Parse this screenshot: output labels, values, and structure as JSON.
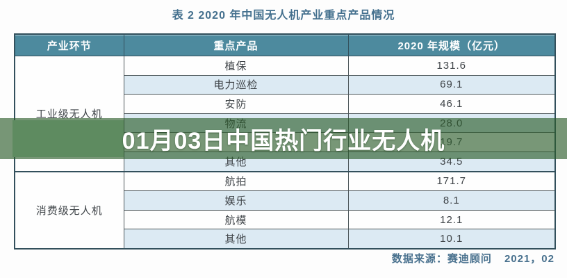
{
  "doc": {
    "title": "表 2  2020 年中国无人机产业重点产品情况"
  },
  "table": {
    "headers": [
      "产业环节",
      "重点产品",
      "2020 年规模（亿元）"
    ],
    "sections": [
      {
        "category": "工业级无人机",
        "rows": [
          {
            "label": "植保",
            "value": "131.6"
          },
          {
            "label": "电力巡检",
            "value": "69.1"
          },
          {
            "label": "安防",
            "value": "46.1"
          },
          {
            "label": "物流",
            "value": "28.0"
          },
          {
            "label": "",
            "value": "19.7"
          },
          {
            "label": "其他",
            "value": "34.5"
          }
        ]
      },
      {
        "category": "消费级无人机",
        "rows": [
          {
            "label": "航拍",
            "value": "171.7"
          },
          {
            "label": "娱乐",
            "value": "8.1"
          },
          {
            "label": "航模",
            "value": "12.1"
          },
          {
            "label": "其他",
            "value": "10.1"
          }
        ]
      }
    ]
  },
  "overlay": {
    "text": "01月03日中国热门行业无人机"
  },
  "footer": {
    "source_label": "数据来源：赛迪顾问",
    "date": "2021，02"
  },
  "colors": {
    "header_bg": "#4d8a9e",
    "stripe_blue": "#dceaf3",
    "row_white": "#fefefe",
    "outer_border": "#33505c",
    "inner_border": "#4b5559",
    "title_text": "#44708e",
    "body_text": "#3f4448",
    "banner_overlay": "rgba(44,92,42,0.64)",
    "banner_block": "#5e8b60",
    "banner_text": "#ffffff",
    "footer_text": "#49718e"
  },
  "chart_data": {
    "type": "table",
    "title": "表 2 2020 年中国无人机产业重点产品情况",
    "columns": [
      "产业环节",
      "重点产品",
      "2020 年规模（亿元）"
    ],
    "rows": [
      [
        "工业级无人机",
        "植保",
        131.6
      ],
      [
        "工业级无人机",
        "电力巡检",
        69.1
      ],
      [
        "工业级无人机",
        "安防",
        46.1
      ],
      [
        "工业级无人机",
        "物流",
        28.0
      ],
      [
        "工业级无人机",
        "(被横幅遮挡)",
        19.7
      ],
      [
        "工业级无人机",
        "其他",
        34.5
      ],
      [
        "消费级无人机",
        "航拍",
        171.7
      ],
      [
        "消费级无人机",
        "娱乐",
        8.1
      ],
      [
        "消费级无人机",
        "航模",
        12.1
      ],
      [
        "消费级无人机",
        "其他",
        10.1
      ]
    ],
    "source": "数据来源：赛迪顾问 2021，02"
  }
}
